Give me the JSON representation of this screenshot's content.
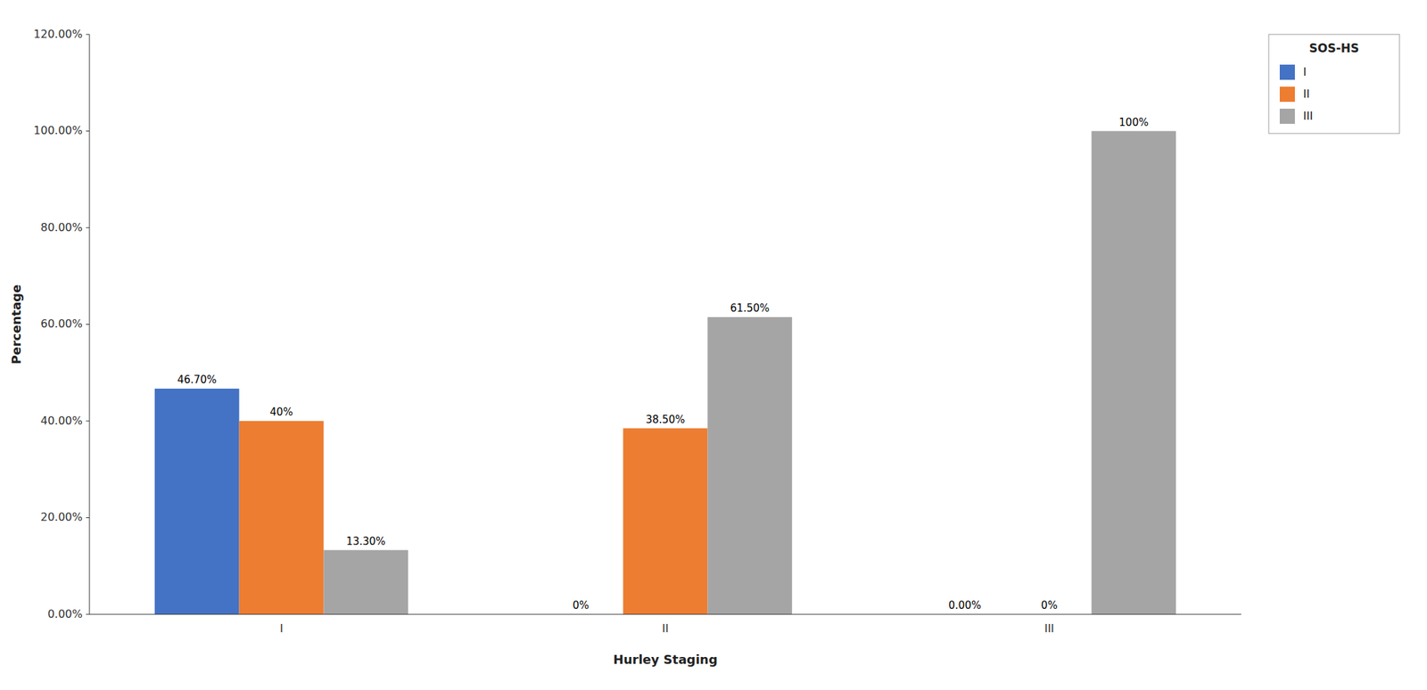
{
  "chart_data": {
    "type": "bar",
    "xlabel": "Hurley Staging",
    "ylabel": "Percentage",
    "categories": [
      "I",
      "II",
      "III"
    ],
    "series": [
      {
        "name": "I",
        "color": "#4472C4",
        "values": [
          46.7,
          0.0,
          0.0
        ],
        "value_labels": [
          "46.70%",
          "0%",
          "0.00%"
        ]
      },
      {
        "name": "II",
        "color": "#ED7D31",
        "values": [
          40.0,
          38.5,
          0.0
        ],
        "value_labels": [
          "40%",
          "38.50%",
          "0%"
        ]
      },
      {
        "name": "III",
        "color": "#A5A5A5",
        "values": [
          13.3,
          61.5,
          100.0
        ],
        "value_labels": [
          "13.30%",
          "61.50%",
          "100%"
        ]
      }
    ],
    "ylim": [
      0,
      120
    ],
    "yticks": [
      {
        "value": 0,
        "label": "0.00%"
      },
      {
        "value": 20,
        "label": "20.00%"
      },
      {
        "value": 40,
        "label": "40.00%"
      },
      {
        "value": 60,
        "label": "60.00%"
      },
      {
        "value": 80,
        "label": "80.00%"
      },
      {
        "value": 100,
        "label": "100.00%"
      },
      {
        "value": 120,
        "label": "120.00%"
      }
    ],
    "grid": false,
    "legend": "upper right",
    "legend_title": "SOS-HS",
    "data_labels": true
  }
}
